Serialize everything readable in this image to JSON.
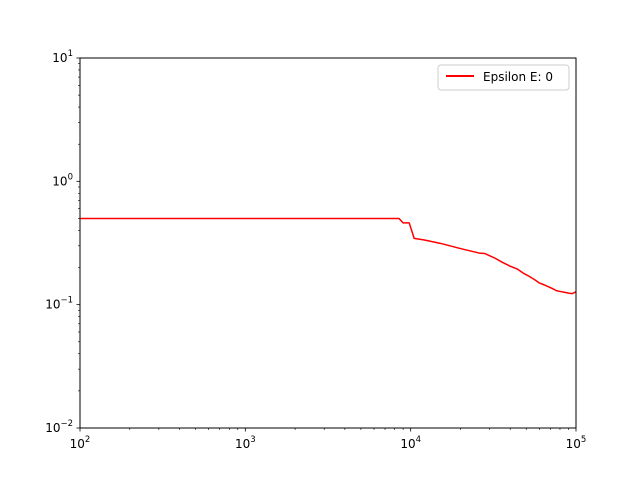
{
  "chart_data": {
    "type": "line",
    "title": "",
    "xlabel": "",
    "ylabel": "",
    "xscale": "log",
    "yscale": "log",
    "xlim": [
      100,
      100000
    ],
    "ylim": [
      0.01,
      10
    ],
    "grid": false,
    "legend_position": "top-right",
    "x_major_ticks": [
      100,
      1000,
      10000,
      100000
    ],
    "y_major_ticks": [
      0.01,
      0.1,
      1,
      10
    ],
    "x_tick_labels": [
      {
        "base": "10",
        "exp": "2"
      },
      {
        "base": "10",
        "exp": "3"
      },
      {
        "base": "10",
        "exp": "4"
      },
      {
        "base": "10",
        "exp": "5"
      }
    ],
    "y_tick_labels": [
      {
        "base": "10",
        "exp": "−2"
      },
      {
        "base": "10",
        "exp": "−1"
      },
      {
        "base": "10",
        "exp": "0"
      },
      {
        "base": "10",
        "exp": "1"
      }
    ],
    "series": [
      {
        "name": "Epsilon E: 0",
        "color": "#ff0000",
        "points": [
          [
            100,
            0.5
          ],
          [
            8500,
            0.5
          ],
          [
            9000,
            0.46
          ],
          [
            9800,
            0.46
          ],
          [
            10500,
            0.345
          ],
          [
            12000,
            0.335
          ],
          [
            15000,
            0.315
          ],
          [
            20000,
            0.285
          ],
          [
            26000,
            0.262
          ],
          [
            28000,
            0.26
          ],
          [
            32000,
            0.24
          ],
          [
            36000,
            0.22
          ],
          [
            40000,
            0.205
          ],
          [
            44000,
            0.195
          ],
          [
            48000,
            0.18
          ],
          [
            52000,
            0.17
          ],
          [
            56000,
            0.16
          ],
          [
            60000,
            0.15
          ],
          [
            64000,
            0.145
          ],
          [
            68000,
            0.14
          ],
          [
            72000,
            0.135
          ],
          [
            76000,
            0.13
          ],
          [
            80000,
            0.128
          ],
          [
            85000,
            0.126
          ],
          [
            90000,
            0.124
          ],
          [
            95000,
            0.123
          ],
          [
            100000,
            0.127
          ]
        ]
      }
    ]
  }
}
